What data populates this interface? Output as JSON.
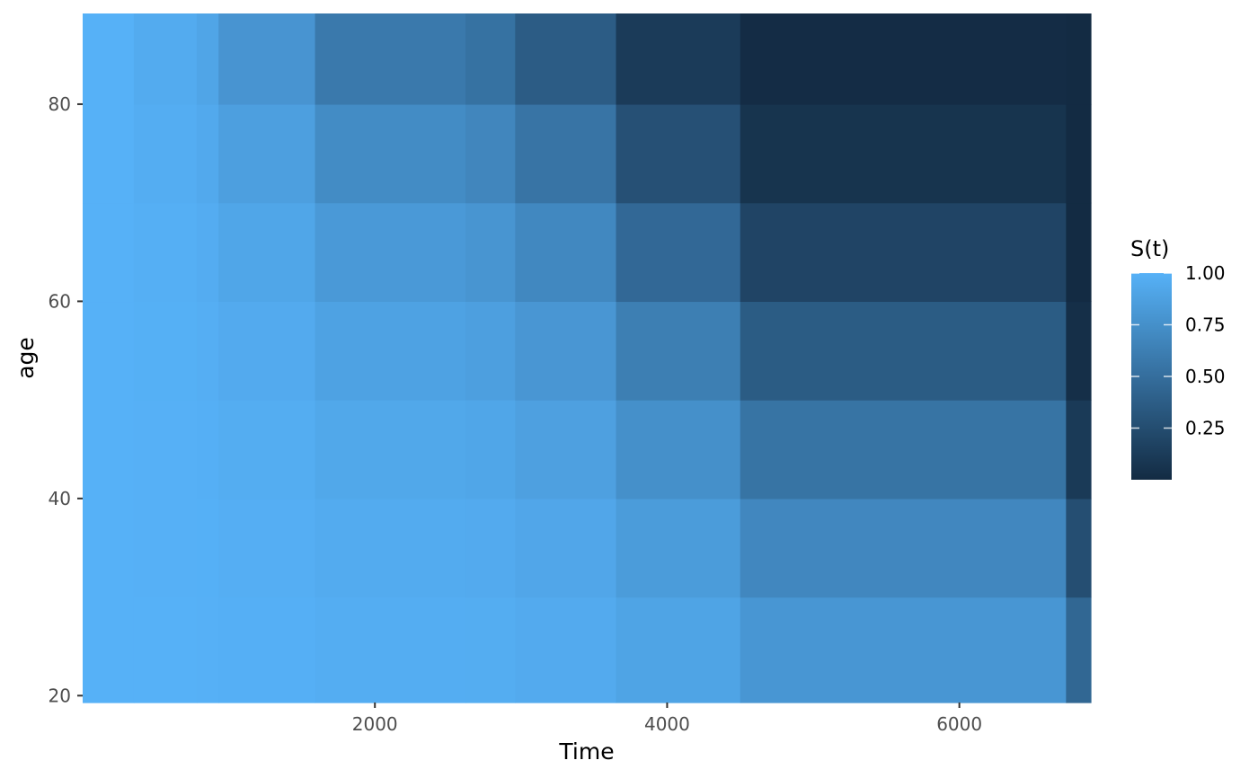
{
  "chart_data": {
    "type": "heatmap",
    "title": "",
    "xlabel": "Time",
    "ylabel": "age",
    "xlim": [
      0,
      6900
    ],
    "ylim": [
      19.3,
      89.2
    ],
    "x_ticks": [
      2000,
      4000,
      6000
    ],
    "y_ticks": [
      20,
      40,
      60,
      80
    ],
    "x_breaks": [
      0,
      350,
      780,
      930,
      1590,
      2620,
      2960,
      3650,
      4500,
      6730,
      6900
    ],
    "y_breaks": [
      19.3,
      30,
      40,
      50,
      60,
      70,
      80,
      89.2
    ],
    "y_mid": [
      25,
      35,
      45,
      55,
      65,
      75,
      85
    ],
    "base_survival": [
      1.0,
      0.995,
      0.99,
      0.975,
      0.945,
      0.935,
      0.9,
      0.8,
      0.62,
      0.18
    ],
    "age_effect_per_year": 0.05,
    "reference_age": 40,
    "legend": {
      "title": "S(t)",
      "range": [
        0.0,
        1.0
      ],
      "ticks": [
        0.25,
        0.5,
        0.75,
        1.0
      ],
      "tick_labels": [
        "0.25",
        "0.50",
        "0.75",
        "1.00"
      ],
      "position": "right"
    },
    "colors": {
      "high": "#56B1F7",
      "low": "#132B43"
    },
    "grid": false
  }
}
